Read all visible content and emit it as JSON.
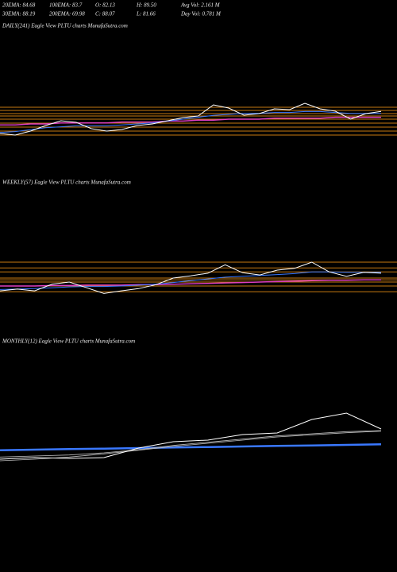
{
  "header": {
    "rows": [
      [
        "20EMA: 84.68",
        "100EMA: 83.7",
        "O: 82.13",
        "H: 89.50",
        "Avg Vol: 2.161 M"
      ],
      [
        "30EMA: 88.19",
        "200EMA: 69.98",
        "C: 88.07",
        "L: 81.66",
        "Day Vol: 0.781 M"
      ]
    ]
  },
  "chart_data": [
    {
      "type": "line",
      "title": "DAILY(241) Eagle  View  PLTU charts MunafaSutra.com",
      "ylim": [
        55,
        105
      ],
      "levels": [
        92.5,
        89.2,
        85.8,
        83.3,
        80,
        75.8,
        71.7,
        67.5,
        63.3
      ],
      "level_color": "#c87a10",
      "series": [
        {
          "color": "#e040c0",
          "linewidth": 1.5,
          "values": [
            74,
            74,
            75,
            75,
            76,
            76,
            76,
            76,
            77,
            77,
            77,
            78,
            78,
            79,
            79,
            80,
            80,
            80,
            81,
            81,
            81,
            81,
            82,
            82,
            82,
            82
          ]
        },
        {
          "color": "#3a78ff",
          "linewidth": 1,
          "values": [
            66,
            67,
            69,
            71,
            72,
            73,
            73,
            73,
            74,
            75,
            76,
            78,
            80,
            82,
            84,
            85,
            86,
            86,
            87,
            87,
            88,
            88,
            87,
            86,
            86,
            86
          ]
        },
        {
          "color": "#ffffff",
          "linewidth": 1,
          "values": [
            65,
            63.3,
            67.5,
            73.3,
            78.3,
            76.7,
            70,
            67.5,
            69.2,
            73.3,
            75,
            78.3,
            81.7,
            83.3,
            95,
            91.7,
            84.2,
            85.8,
            90.8,
            90,
            96.7,
            90.8,
            88.3,
            80,
            85.8,
            88.1
          ]
        }
      ]
    },
    {
      "type": "line",
      "title": "WEEKLY(57) Eagle  View  PLTU charts MunafaSutra.com",
      "ylim": [
        20,
        110
      ],
      "levels": [
        92,
        79,
        70,
        56,
        52,
        47,
        38,
        25
      ],
      "level_color": "#c87a10",
      "series": [
        {
          "color": "#e040c0",
          "linewidth": 1.5,
          "values": [
            38,
            38,
            38,
            39,
            39,
            40,
            40,
            40,
            41,
            41,
            42,
            43,
            44,
            45,
            46,
            47,
            48,
            49,
            50,
            51,
            51,
            52,
            52
          ]
        },
        {
          "color": "#3a78ff",
          "linewidth": 1,
          "values": [
            30,
            31,
            32,
            34,
            36,
            37,
            37,
            38,
            40,
            42,
            46,
            50,
            54,
            58,
            60,
            62,
            64,
            66,
            70,
            70,
            69,
            69,
            69
          ]
        },
        {
          "color": "#ffffff",
          "linewidth": 1,
          "values": [
            27,
            31,
            27,
            42,
            47,
            34,
            21,
            27,
            32,
            41,
            56,
            61,
            67,
            86,
            68,
            63,
            74,
            78,
            92,
            70,
            60,
            69,
            67
          ]
        }
      ]
    },
    {
      "type": "line",
      "title": "MONTHLY(12) Eagle  View  PLTU charts MunafaSutra.com",
      "ylim": [
        0,
        120
      ],
      "levels": [],
      "level_color": "#c87a10",
      "series": [
        {
          "color": "#3a78ff",
          "linewidth": 2.5,
          "values": [
            35,
            36,
            37,
            38,
            39,
            40,
            41,
            42,
            43,
            44,
            45,
            46
          ]
        },
        {
          "color": "#bbbbbb",
          "linewidth": 0.8,
          "values": [
            22,
            24,
            26,
            30,
            36,
            44,
            50,
            56,
            62,
            66,
            70,
            72
          ]
        },
        {
          "color": "#bbbbbb",
          "linewidth": 0.8,
          "values": [
            15,
            18,
            22,
            28,
            35,
            42,
            48,
            54,
            60,
            64,
            68,
            71
          ]
        },
        {
          "color": "#ffffff",
          "linewidth": 1,
          "values": [
            18,
            21,
            19.5,
            21,
            39,
            51,
            54,
            64.5,
            67.5,
            93,
            105,
            75
          ]
        }
      ]
    }
  ]
}
